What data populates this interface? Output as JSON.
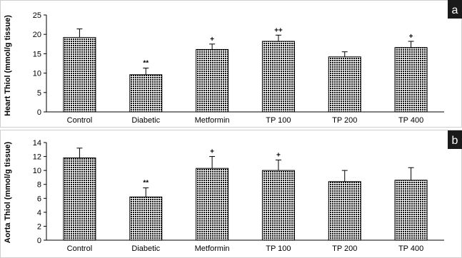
{
  "chart_data": [
    {
      "panel": "a",
      "type": "bar",
      "ylabel": "Heart Thiol (mmol/g tissue)",
      "categories": [
        "Control",
        "Diabetic",
        "Metformin",
        "TP 100",
        "TP 200",
        "TP 400"
      ],
      "values": [
        19.2,
        9.6,
        16.1,
        18.2,
        14.2,
        16.6
      ],
      "errors": [
        2.2,
        1.7,
        1.4,
        1.6,
        1.3,
        1.6
      ],
      "annotations": [
        "",
        "**",
        "+",
        "++",
        "",
        "+"
      ],
      "ylim": [
        0,
        25
      ],
      "yticks": [
        "0",
        "5",
        "10",
        "15",
        "20",
        "25"
      ],
      "grid": false,
      "legend": "none"
    },
    {
      "panel": "b",
      "type": "bar",
      "ylabel": "Aorta Thiol (mmol/g tissue)",
      "categories": [
        "Control",
        "Diabetic",
        "Metformin",
        "TP 100",
        "TP 200",
        "TP 400"
      ],
      "values": [
        11.8,
        6.2,
        10.3,
        10.0,
        8.4,
        8.6
      ],
      "errors": [
        1.4,
        1.3,
        1.7,
        1.5,
        1.6,
        1.8
      ],
      "annotations": [
        "",
        "**",
        "+",
        "+",
        "",
        ""
      ],
      "ylim": [
        0,
        14
      ],
      "yticks": [
        "0",
        "2",
        "4",
        "6",
        "8",
        "10",
        "12",
        "14"
      ],
      "grid": false,
      "legend": "none"
    }
  ],
  "style": {
    "bar_color": "#000000",
    "badge_color": "#1a1a1a"
  }
}
